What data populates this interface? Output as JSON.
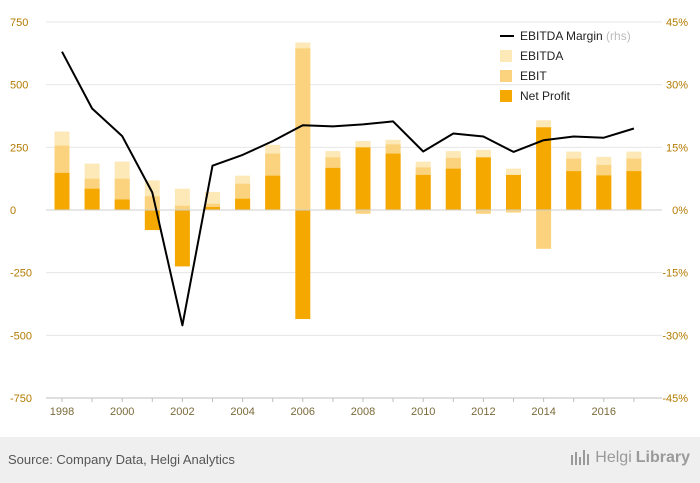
{
  "chart_data": {
    "type": "bar",
    "x": [
      1998,
      1999,
      2000,
      2001,
      2002,
      2003,
      2004,
      2005,
      2006,
      2007,
      2008,
      2009,
      2010,
      2011,
      2012,
      2013,
      2014,
      2015,
      2016,
      2017
    ],
    "x_tick_labels": [
      "1998",
      "2000",
      "2002",
      "2004",
      "2006",
      "2008",
      "2010",
      "2012",
      "2014",
      "2016"
    ],
    "left_axis": {
      "ylim": [
        -750,
        750
      ],
      "ticks": [
        750,
        500,
        250,
        0,
        -250,
        -500,
        -750
      ],
      "tick_labels": [
        "750",
        "500",
        "250",
        "0",
        "-250",
        "-500",
        "-750"
      ]
    },
    "right_axis": {
      "ylim": [
        -45,
        45
      ],
      "ticks": [
        45,
        30,
        15,
        0,
        -15,
        -30,
        -45
      ],
      "tick_labels": [
        "45%",
        "30%",
        "15%",
        "0%",
        "-15%",
        "-30%",
        "-45%"
      ]
    },
    "series": [
      {
        "name": "EBITDA",
        "kind": "bar",
        "color": "#fde9b8",
        "values": [
          313,
          185,
          193,
          118,
          85,
          72,
          137,
          260,
          668,
          235,
          275,
          280,
          193,
          235,
          240,
          165,
          358,
          233,
          212,
          233
        ]
      },
      {
        "name": "EBIT",
        "kind": "bar",
        "color": "#fbd37e",
        "values": [
          257,
          125,
          125,
          55,
          17,
          25,
          105,
          225,
          645,
          210,
          -15,
          262,
          170,
          208,
          -15,
          -10,
          -155,
          205,
          180,
          205
        ]
      },
      {
        "name": "Net Profit",
        "kind": "bar",
        "color": "#f5a800",
        "values": [
          148,
          85,
          42,
          -80,
          -225,
          12,
          45,
          137,
          -435,
          168,
          250,
          225,
          140,
          165,
          210,
          140,
          330,
          155,
          138,
          155
        ]
      },
      {
        "name": "EBITDA Margin",
        "name_suffix": "(rhs)",
        "kind": "line",
        "color": "#000000",
        "axis": "right",
        "values": [
          37.9,
          24.3,
          17.7,
          4.2,
          -27.6,
          10.6,
          13.2,
          16.5,
          20.3,
          20.0,
          20.5,
          21.2,
          14.0,
          18.3,
          17.6,
          13.9,
          16.7,
          17.6,
          17.3,
          19.5
        ]
      }
    ],
    "legend_position": "top-right",
    "grid": "horizontal"
  },
  "footer": {
    "source": "Source: Company Data, Helgi Analytics",
    "brand_regular": "Helgi",
    "brand_bold": "Library"
  }
}
